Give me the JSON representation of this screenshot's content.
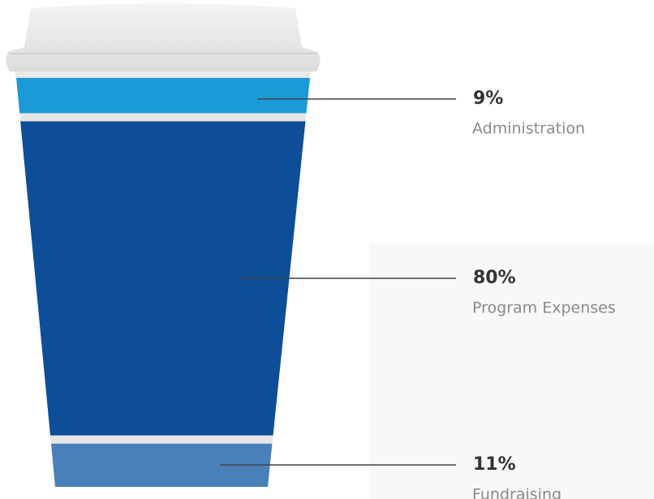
{
  "chart_data": {
    "type": "cup",
    "categories": [
      "Administration",
      "Program Expenses",
      "Fundraising"
    ],
    "values": [
      9,
      80,
      11
    ],
    "value_labels": [
      "9%",
      "80%",
      "11%"
    ],
    "colors": [
      "#1a9ad6",
      "#0e4d97",
      "#4a80b8"
    ]
  }
}
